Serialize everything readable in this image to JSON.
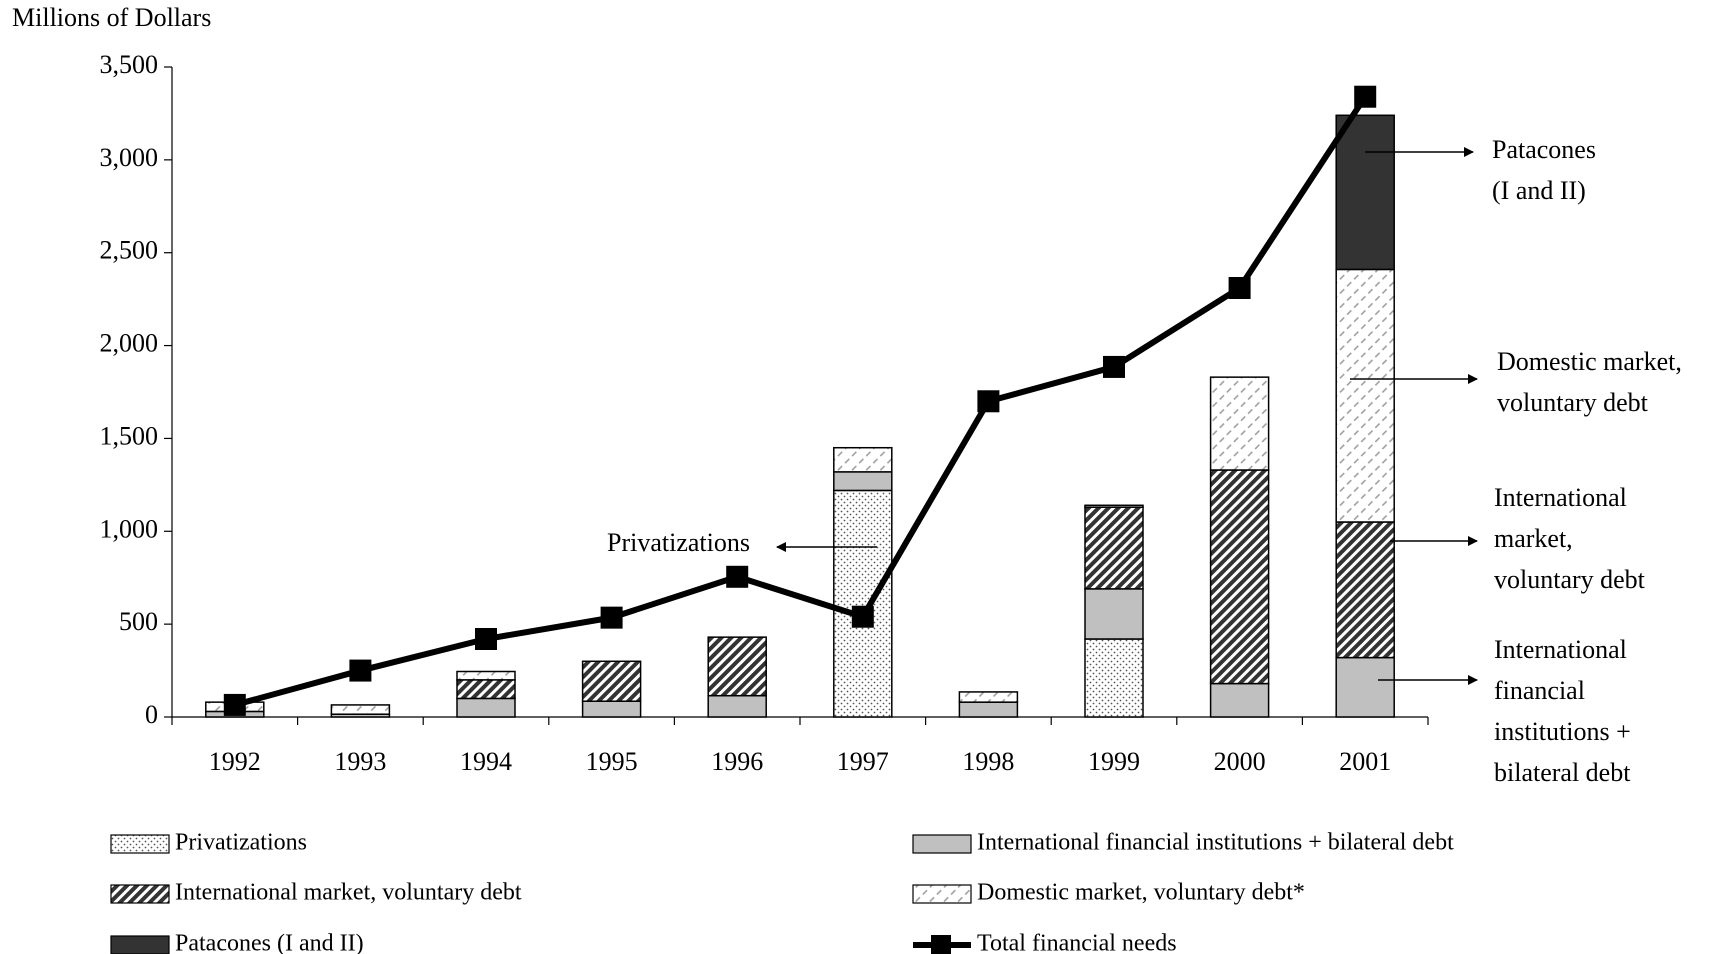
{
  "chart_data": {
    "type": "bar",
    "stacked": true,
    "y_axis_label": "Millions of Dollars",
    "categories": [
      "1992",
      "1993",
      "1994",
      "1995",
      "1996",
      "1997",
      "1998",
      "1999",
      "2000",
      "2001"
    ],
    "series": [
      {
        "name": "Privatizations",
        "color": "#ffffff",
        "pattern": "dots",
        "values": [
          null,
          null,
          null,
          null,
          null,
          1220,
          null,
          420,
          null,
          null
        ]
      },
      {
        "name": "International financial institutions + bilateral debt",
        "color": "#c0c0c0",
        "pattern": "solid",
        "values": [
          30,
          15,
          100,
          85,
          115,
          100,
          80,
          270,
          180,
          320
        ]
      },
      {
        "name": "International market, voluntary debt",
        "color": "#333333",
        "pattern": "hatch",
        "values": [
          null,
          null,
          100,
          215,
          315,
          null,
          null,
          440,
          1150,
          730
        ]
      },
      {
        "name": "Domestic market, voluntary debt*",
        "color": "#999999",
        "pattern": "dashes",
        "values": [
          50,
          50,
          45,
          null,
          null,
          130,
          55,
          10,
          500,
          1360
        ]
      },
      {
        "name": "Patacones (I and II)",
        "color": "#333333",
        "pattern": "solid",
        "values": [
          null,
          null,
          null,
          null,
          null,
          null,
          null,
          null,
          null,
          830
        ]
      },
      {
        "name": "Total financial needs",
        "color": "#000000",
        "type": "line",
        "values": [
          65,
          250,
          420,
          535,
          755,
          540,
          1700,
          1885,
          2310,
          3340
        ]
      }
    ],
    "ylim": [
      0,
      3500
    ],
    "yticks": [
      0,
      500,
      {
        "value": 1000,
        "label": "1,000"
      },
      {
        "value": 1500,
        "label": "1,500"
      },
      {
        "value": 2000,
        "label": "2,000"
      },
      {
        "value": 2500,
        "label": "2,500"
      },
      {
        "value": 3000,
        "label": "3,000"
      },
      {
        "value": 3500,
        "label": "3,500"
      }
    ],
    "grid": false,
    "annotations": [
      {
        "lines": [
          "Privatizations"
        ]
      },
      {
        "lines": [
          "Patacones",
          "(I and II)"
        ]
      },
      {
        "lines": [
          "Domestic market,",
          "voluntary debt"
        ]
      },
      {
        "lines": [
          "International",
          "market,",
          "voluntary debt"
        ]
      },
      {
        "lines": [
          "International",
          "financial",
          "institutions +",
          "bilateral debt"
        ]
      }
    ]
  }
}
